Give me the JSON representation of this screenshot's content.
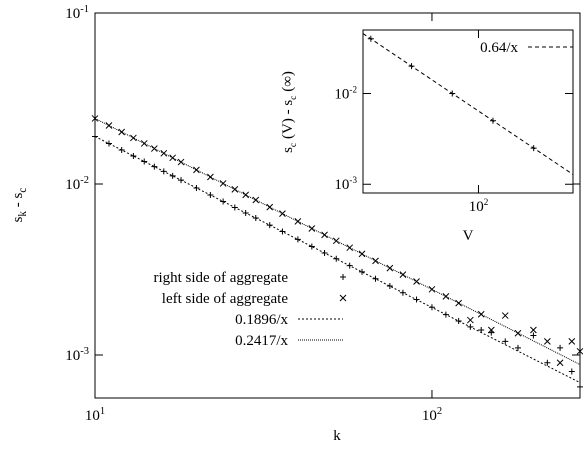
{
  "chart_data": [
    {
      "type": "scatter",
      "xlabel": [
        "k"
      ],
      "ylabel": [
        "s",
        "k",
        " - s",
        "c"
      ],
      "log_x": true,
      "log_y": true,
      "xlim": [
        10,
        275
      ],
      "ylim": [
        0.00056,
        0.1
      ],
      "xticks": [
        {
          "value": 10,
          "label": "10",
          "exponent": "1"
        },
        {
          "value": 100,
          "label": "10",
          "exponent": "2"
        }
      ],
      "yticks": [
        {
          "value": 0.1,
          "label": "10",
          "exponent": "-1"
        },
        {
          "value": 0.01,
          "label": "10",
          "exponent": "-2"
        },
        {
          "value": 0.001,
          "label": "10",
          "exponent": "-3"
        }
      ],
      "x": [
        10,
        11,
        12,
        13,
        14,
        15,
        16,
        17,
        18,
        20,
        22,
        24,
        26,
        28,
        30,
        33,
        36,
        40,
        44,
        48,
        52,
        57,
        62,
        68,
        75,
        82,
        90,
        100,
        110,
        120,
        130,
        140,
        150,
        165,
        180,
        200,
        220,
        240,
        260,
        275
      ],
      "series": [
        {
          "name": "right side of aggregate",
          "marker": "plus",
          "color": "#000000",
          "values": [
            0.01896,
            0.01724,
            0.0158,
            0.01458,
            0.01354,
            0.01264,
            0.01185,
            0.01115,
            0.01053,
            0.00948,
            0.00862,
            0.0079,
            0.00729,
            0.00677,
            0.00632,
            0.00575,
            0.00527,
            0.00474,
            0.00431,
            0.00395,
            0.00365,
            0.00333,
            0.00306,
            0.00279,
            0.00253,
            0.00231,
            0.00211,
            0.0019,
            0.00172,
            0.00158,
            0.00146,
            0.0014,
            0.00135,
            0.0012,
            0.0011,
            0.0013,
            0.0009,
            0.0011,
            0.0008,
            0.00065
          ]
        },
        {
          "name": "left side of aggregate",
          "marker": "cross",
          "color": "#000000",
          "values": [
            0.02417,
            0.02197,
            0.02014,
            0.01859,
            0.01726,
            0.01611,
            0.01511,
            0.01422,
            0.01343,
            0.01209,
            0.01099,
            0.01007,
            0.0093,
            0.00863,
            0.00806,
            0.00732,
            0.00671,
            0.00604,
            0.00549,
            0.00504,
            0.00465,
            0.00424,
            0.0039,
            0.00355,
            0.00322,
            0.00295,
            0.00269,
            0.00242,
            0.0022,
            0.00201,
            0.0016,
            0.00173,
            0.0014,
            0.0017,
            0.00134,
            0.0014,
            0.0012,
            0.0009,
            0.0012,
            0.00105
          ]
        },
        {
          "name": "0.1896/x",
          "style": "line",
          "dash": "2,2",
          "color": "#000000",
          "x": [
            10,
            275
          ],
          "values": [
            0.01896,
            0.000689
          ]
        },
        {
          "name": "0.2417/x",
          "style": "line",
          "dash": "1,1",
          "color": "#000000",
          "x": [
            10,
            275
          ],
          "values": [
            0.02417,
            0.000879
          ]
        }
      ]
    },
    {
      "type": "scatter",
      "xlabel": [
        "V"
      ],
      "ylabel": [
        "s",
        "c",
        " (V) - s",
        "c",
        " (∞)"
      ],
      "log_x": true,
      "log_y": true,
      "xlim": [
        14,
        500
      ],
      "ylim": [
        0.0008,
        0.05
      ],
      "xticks": [
        {
          "value": 100,
          "label": "10",
          "exponent": "2"
        }
      ],
      "yticks": [
        {
          "value": 0.01,
          "label": "10",
          "exponent": "-2"
        },
        {
          "value": 0.001,
          "label": "10",
          "exponent": "-3"
        }
      ],
      "x": [
        16,
        32,
        64,
        128,
        256
      ],
      "series": [
        {
          "name": "0.64/x",
          "style": "line",
          "dash": "4,3",
          "color": "#000000",
          "x": [
            14,
            500
          ],
          "values": [
            0.0457,
            0.00128
          ]
        },
        {
          "marker": "plus",
          "color": "#000000",
          "values": [
            0.04,
            0.02,
            0.01,
            0.005,
            0.0025
          ]
        }
      ]
    }
  ]
}
